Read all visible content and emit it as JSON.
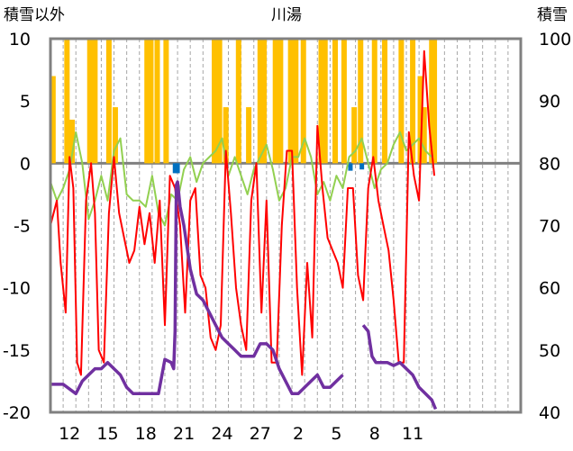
{
  "chart_data": {
    "type": "line",
    "title": "川湯",
    "left_axis": {
      "label": "積雪以外",
      "ylim": [
        -20,
        10
      ],
      "ticks": [
        10,
        5,
        0,
        -5,
        -10,
        -15,
        -20
      ]
    },
    "right_axis": {
      "label": "積雪",
      "ylim": [
        40,
        100
      ],
      "ticks": [
        100,
        90,
        80,
        70,
        60,
        50,
        40
      ]
    },
    "x_axis": {
      "range": [
        0,
        37
      ],
      "tick_labels": [
        "12",
        "15",
        "18",
        "21",
        "24",
        "27",
        "2",
        "5",
        "8",
        "11"
      ],
      "tick_positions": [
        1.5,
        4.5,
        7.5,
        10.5,
        13.5,
        16.5,
        19.5,
        22.5,
        25.5,
        28.5
      ],
      "gridlines_every_day": true
    },
    "colors": {
      "temperature": "#ff0000",
      "humidity_index": "#92d050",
      "precipitation": "#ffc000",
      "negative_bar": "#0070c0",
      "snow_depth": "#7030a0",
      "zero_line": "#808080",
      "grid": "#a6a6a6"
    },
    "series": [
      {
        "key": "precipitation",
        "axis": "left",
        "style": "bar",
        "x": [
          0.2,
          1.3,
          1.7,
          3.1,
          3.5,
          4.6,
          5.1,
          7.6,
          7.9,
          8.4,
          9.1,
          12.9,
          13.3,
          13.8,
          14.8,
          15.6,
          16.5,
          16.8,
          17.7,
          18.1,
          18.9,
          19.3,
          19.9,
          21.3,
          21.6,
          22.4,
          23.1,
          23.9,
          24.4,
          25.5,
          26.3,
          27.6,
          28.5,
          29.1,
          29.4,
          30.0,
          30.2
        ],
        "values": [
          7,
          10,
          3.5,
          10,
          10,
          10,
          4.5,
          10,
          10,
          10,
          10,
          10,
          10,
          4.5,
          10,
          4.5,
          10,
          10,
          10,
          10,
          10,
          10,
          10,
          10,
          10,
          10,
          10,
          4.5,
          10,
          10,
          10,
          10,
          10,
          7,
          4.5,
          10,
          10
        ]
      },
      {
        "key": "negative_bar",
        "axis": "left",
        "style": "bar",
        "x": [
          9.8,
          10.0,
          23.6,
          24.5
        ],
        "values": [
          -0.8,
          -0.8,
          -0.6,
          -0.5
        ]
      },
      {
        "key": "humidity_index",
        "axis": "left",
        "style": "line",
        "x": [
          0,
          0.5,
          1,
          1.5,
          2,
          2.5,
          3,
          3.5,
          4,
          4.5,
          5,
          5.5,
          6,
          6.5,
          7,
          7.5,
          8,
          8.5,
          9,
          9.5,
          10,
          10.5,
          11,
          11.5,
          12,
          12.5,
          13,
          13.5,
          14,
          14.5,
          15,
          15.5,
          16,
          16.5,
          17,
          17.5,
          18,
          18.5,
          19,
          19.5,
          20,
          20.5,
          21,
          21.5,
          22,
          22.5,
          23,
          23.5,
          24,
          24.5,
          25,
          25.5,
          26,
          26.5,
          27,
          27.5,
          28,
          28.5,
          29,
          29.5,
          30
        ],
        "values": [
          -1.5,
          -3,
          -2,
          -0.5,
          2.5,
          0,
          -4.5,
          -3,
          -1,
          -3,
          1,
          2,
          -2.5,
          -3,
          -3,
          -3.5,
          -1,
          -4,
          -5,
          -2.5,
          -3,
          -0.5,
          0.5,
          -1.5,
          0,
          0.5,
          1,
          2,
          -1,
          0.5,
          -1,
          -2.5,
          -0.5,
          0.5,
          1.5,
          -0.5,
          -3,
          -2,
          0.5,
          0.5,
          2,
          0.5,
          -2.5,
          -1.5,
          -3,
          -1,
          -2,
          0.5,
          1,
          2,
          0,
          -2,
          -0.5,
          0,
          1.5,
          2.5,
          1,
          1.5,
          2,
          1,
          0.5
        ]
      },
      {
        "key": "temperature",
        "axis": "left",
        "style": "line",
        "x": [
          0,
          0.5,
          0.8,
          1.2,
          1.5,
          1.8,
          2.1,
          2.4,
          2.8,
          3.2,
          3.5,
          3.8,
          4.2,
          4.6,
          5.0,
          5.4,
          5.8,
          6.2,
          6.6,
          7.0,
          7.4,
          7.8,
          8.2,
          8.6,
          9.0,
          9.4,
          9.8,
          10.2,
          10.6,
          11.0,
          11.4,
          11.8,
          12.2,
          12.6,
          13.0,
          13.4,
          13.8,
          14.2,
          14.6,
          15.0,
          15.4,
          15.8,
          16.2,
          16.6,
          17.0,
          17.4,
          17.8,
          18.2,
          18.6,
          19.0,
          19.4,
          19.8,
          20.2,
          20.6,
          21.0,
          21.4,
          21.8,
          22.2,
          22.6,
          23.0,
          23.4,
          23.8,
          24.2,
          24.6,
          25.0,
          25.4,
          25.8,
          26.2,
          26.6,
          27.0,
          27.4,
          27.8,
          28.2,
          28.6,
          29.0,
          29.4,
          29.8,
          30.2
        ],
        "values": [
          -5,
          -3,
          -8,
          -12,
          0.5,
          -2,
          -16,
          -17,
          -3,
          0,
          -4,
          -15,
          -16,
          -4,
          0.5,
          -4,
          -6,
          -8,
          -7,
          -3.5,
          -6.5,
          -4,
          -8,
          -3,
          -13,
          -1,
          -2,
          -5,
          -12,
          -3,
          -2,
          -9,
          -10,
          -14,
          -15,
          -13,
          1,
          -4,
          -10,
          -13,
          -15,
          -3,
          0,
          -12,
          -3,
          -16,
          -16,
          -5,
          1,
          1,
          -10,
          -17,
          -8,
          -14,
          3,
          -2,
          -6,
          -7,
          -8,
          -10,
          -2,
          -2,
          -9,
          -11,
          -2,
          0.5,
          -3,
          -5,
          -7,
          -11,
          -16,
          -16,
          2.5,
          -1,
          -3,
          9,
          3,
          -1
        ]
      },
      {
        "key": "snow_depth",
        "axis": "right",
        "style": "line",
        "x": [
          0,
          1,
          2,
          2.5,
          3,
          3.5,
          4,
          4.5,
          5,
          5.5,
          6,
          6.5,
          7,
          7.5,
          8,
          8.5,
          9,
          9.5,
          9.7,
          9.8,
          9.9,
          10.0,
          10.2,
          10.5,
          11,
          11.5,
          12,
          12.5,
          13,
          13.5,
          14,
          14.5,
          15,
          15.5,
          16,
          16.5,
          17,
          17.5,
          18,
          18.5,
          19,
          19.5,
          20,
          20.5,
          21,
          21.5,
          22,
          22.5,
          23
        ],
        "values": [
          44.5,
          44.5,
          43,
          45,
          46,
          47,
          47,
          48,
          47,
          46,
          44,
          43,
          43,
          43,
          43,
          43,
          48.5,
          48,
          47,
          53,
          76.5,
          77,
          73,
          70,
          63,
          59,
          58,
          56,
          54,
          52,
          51,
          50,
          49,
          49,
          49,
          51,
          51,
          50,
          47,
          45,
          43,
          43,
          44,
          45,
          46,
          44,
          44,
          45,
          46
        ]
      },
      {
        "key": "snow_depth_late",
        "axis": "right",
        "style": "line",
        "x": [
          24.6,
          25.0,
          25.3,
          25.6,
          26.0,
          26.5,
          27.0,
          27.5,
          28.0,
          28.5,
          29.0,
          29.5,
          30.0,
          30.3
        ],
        "values": [
          54,
          53,
          49,
          48,
          48,
          48,
          47.5,
          48,
          47,
          46,
          44,
          43,
          42,
          40.5
        ]
      }
    ]
  }
}
